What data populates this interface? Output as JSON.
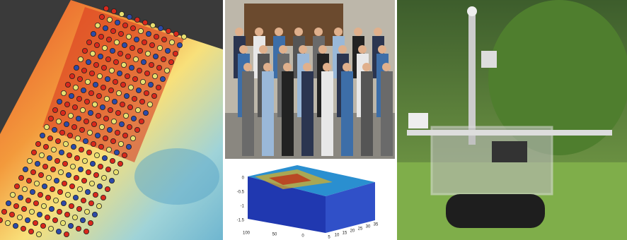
{
  "plot": {
    "z_ticks": [
      "0",
      "-0.5",
      "-1",
      "-1.5"
    ],
    "y_ticks": [
      "100",
      "50",
      "0"
    ],
    "x_ticks": [
      "5",
      "10",
      "15",
      "20",
      "25",
      "30",
      "35"
    ]
  }
}
